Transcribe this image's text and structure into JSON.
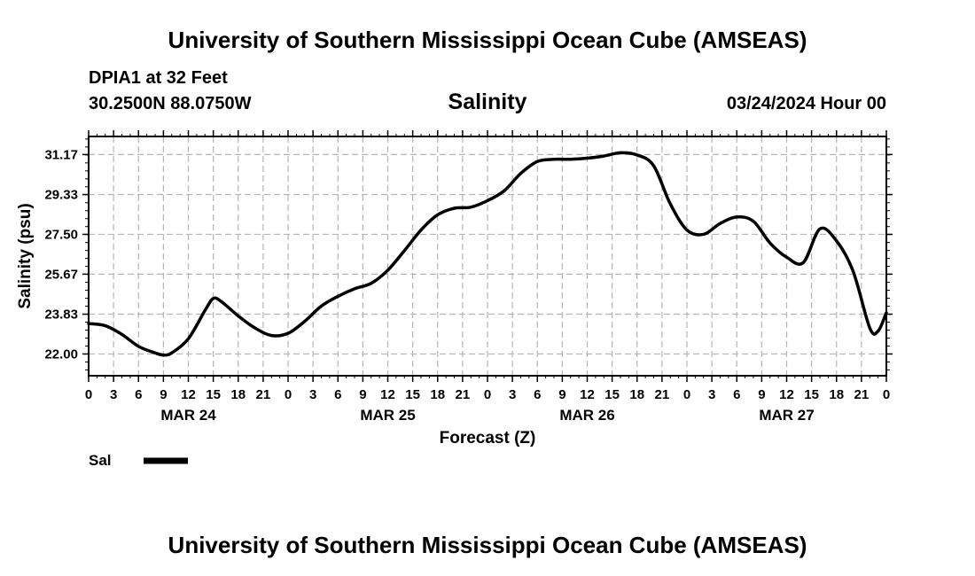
{
  "header": {
    "title_top": "University of Southern Mississippi Ocean Cube (AMSEAS)",
    "title_bottom": "University of Southern Mississippi Ocean Cube (AMSEAS)",
    "station": "DPIA1 at 32 Feet",
    "coordinates": "30.2500N  88.0750W",
    "datetime": "03/24/2024 Hour 00"
  },
  "legend": {
    "label": "Sal"
  },
  "chart_data": {
    "type": "line",
    "title": "Salinity",
    "xlabel": "Forecast (Z)",
    "ylabel": "Salinity (psu)",
    "x_unit": "hours since 03/24/2024 00Z",
    "xlim": [
      0,
      96
    ],
    "ylim": [
      21.0,
      32.0
    ],
    "yticks": [
      22.0,
      23.83,
      25.67,
      27.5,
      29.33,
      31.17
    ],
    "ytick_labels": [
      "22.00",
      "23.83",
      "25.67",
      "27.50",
      "29.33",
      "31.17"
    ],
    "xticks": [
      0,
      3,
      6,
      9,
      12,
      15,
      18,
      21,
      24,
      27,
      30,
      33,
      36,
      39,
      42,
      45,
      48,
      51,
      54,
      57,
      60,
      63,
      66,
      69,
      72,
      75,
      78,
      81,
      84,
      87,
      90,
      93,
      96
    ],
    "xtick_labels": [
      "0",
      "3",
      "6",
      "9",
      "12",
      "15",
      "18",
      "21",
      "0",
      "3",
      "6",
      "9",
      "12",
      "15",
      "18",
      "21",
      "0",
      "3",
      "6",
      "9",
      "12",
      "15",
      "18",
      "21",
      "0",
      "3",
      "6",
      "9",
      "12",
      "15",
      "18",
      "21",
      "0"
    ],
    "day_labels": [
      {
        "x": 12,
        "label": "MAR 24"
      },
      {
        "x": 36,
        "label": "MAR 25"
      },
      {
        "x": 60,
        "label": "MAR 26"
      },
      {
        "x": 84,
        "label": "MAR 27"
      }
    ],
    "grid": true,
    "series": [
      {
        "name": "Sal",
        "x": [
          0,
          2,
          4,
          6,
          8,
          9,
          10,
          12,
          14,
          15,
          16,
          18,
          20,
          22,
          24,
          26,
          28,
          30,
          32,
          34,
          36,
          38,
          40,
          42,
          44,
          46,
          48,
          50,
          52,
          54,
          56,
          58,
          60,
          62,
          64,
          66,
          68,
          70,
          72,
          74,
          76,
          78,
          80,
          82,
          84,
          86,
          88,
          90,
          92,
          94,
          95,
          96
        ],
        "values": [
          23.4,
          23.3,
          22.9,
          22.35,
          22.05,
          21.95,
          22.05,
          22.7,
          24.0,
          24.55,
          24.4,
          23.75,
          23.2,
          22.85,
          22.95,
          23.5,
          24.2,
          24.65,
          25.0,
          25.25,
          25.85,
          26.75,
          27.7,
          28.4,
          28.7,
          28.75,
          29.05,
          29.5,
          30.3,
          30.85,
          30.95,
          30.95,
          31.0,
          31.1,
          31.25,
          31.15,
          30.65,
          28.9,
          27.7,
          27.5,
          28.0,
          28.3,
          28.1,
          27.1,
          26.45,
          26.2,
          27.75,
          27.2,
          25.8,
          23.2,
          23.05,
          23.9
        ]
      }
    ]
  }
}
